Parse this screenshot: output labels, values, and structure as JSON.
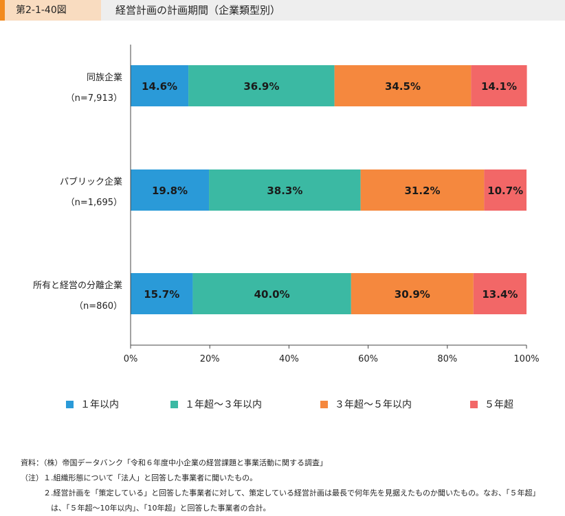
{
  "header": {
    "figure_number": "第2-1-40図",
    "title": "経営計画の計画期間（企業類型別）"
  },
  "colors": {
    "s1": "#2a9ad8",
    "s2": "#3bb9a3",
    "s3": "#f5883e",
    "s4": "#f26767",
    "accent": "#f28a1e"
  },
  "chart_data": {
    "type": "bar",
    "orientation": "horizontal",
    "stacked": true,
    "categories": [
      {
        "name": "同族企業",
        "n": "（n=7,913）"
      },
      {
        "name": "パブリック企業",
        "n": "（n=1,695）"
      },
      {
        "name": "所有と経営の分離企業",
        "n": "（n=860）"
      }
    ],
    "series": [
      {
        "name": "１年以内",
        "values": [
          14.6,
          19.8,
          15.7
        ],
        "labels": [
          "14.6%",
          "19.8%",
          "15.7%"
        ]
      },
      {
        "name": "１年超～３年以内",
        "values": [
          36.9,
          38.3,
          40.0
        ],
        "labels": [
          "36.9%",
          "38.3%",
          "40.0%"
        ]
      },
      {
        "name": "３年超～５年以内",
        "values": [
          34.5,
          31.2,
          30.9
        ],
        "labels": [
          "34.5%",
          "31.2%",
          "30.9%"
        ]
      },
      {
        "name": "５年超",
        "values": [
          14.1,
          10.7,
          13.4
        ],
        "labels": [
          "14.1%",
          "10.7%",
          "13.4%"
        ]
      }
    ],
    "xlim": [
      0,
      100
    ],
    "xticks": [
      0,
      20,
      40,
      60,
      80,
      100
    ],
    "xtick_labels": [
      "0%",
      "20%",
      "40%",
      "60%",
      "80%",
      "100%"
    ],
    "legend_position": "bottom",
    "grid": false
  },
  "notes": [
    "資料：（株）帝国データバンク「令和６年度中小企業の経営課題と事業活動に関する調査」",
    "（注）１.組織形態について「法人」と回答した事業者に聞いたもの。",
    "　　　２.経営計画を「策定している」と回答した事業者に対して、策定している経営計画は最長で何年先を見据えたものか聞いたもの。なお、「５年超」",
    "　　　　は、「５年超～10年以内」、「10年超」と回答した事業者の合計。"
  ]
}
